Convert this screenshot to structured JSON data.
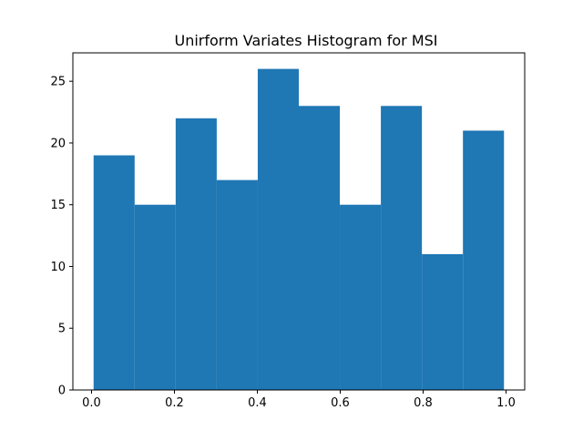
{
  "chart_data": {
    "type": "bar",
    "title": "Unirform Variates Histogram for MSI",
    "xlabel": "",
    "ylabel": "",
    "bins": [
      {
        "start": 0.005,
        "end": 0.104,
        "count": 19
      },
      {
        "start": 0.104,
        "end": 0.203,
        "count": 15
      },
      {
        "start": 0.203,
        "end": 0.302,
        "count": 22
      },
      {
        "start": 0.302,
        "end": 0.401,
        "count": 17
      },
      {
        "start": 0.401,
        "end": 0.5,
        "count": 26
      },
      {
        "start": 0.5,
        "end": 0.599,
        "count": 23
      },
      {
        "start": 0.599,
        "end": 0.698,
        "count": 15
      },
      {
        "start": 0.698,
        "end": 0.797,
        "count": 23
      },
      {
        "start": 0.797,
        "end": 0.896,
        "count": 11
      },
      {
        "start": 0.896,
        "end": 0.995,
        "count": 21
      }
    ],
    "xlim": [
      -0.045,
      1.045
    ],
    "ylim": [
      0,
      27.3
    ],
    "xticks": [
      0.0,
      0.2,
      0.4,
      0.6,
      0.8,
      1.0
    ],
    "xtick_labels": [
      "0.0",
      "0.2",
      "0.4",
      "0.6",
      "0.8",
      "1.0"
    ],
    "yticks": [
      0,
      5,
      10,
      15,
      20,
      25
    ],
    "ytick_labels": [
      "0",
      "5",
      "10",
      "15",
      "20",
      "25"
    ],
    "grid": false,
    "bar_color": "#1f77b4",
    "axis_color": "#000000",
    "background_color": "#ffffff"
  }
}
